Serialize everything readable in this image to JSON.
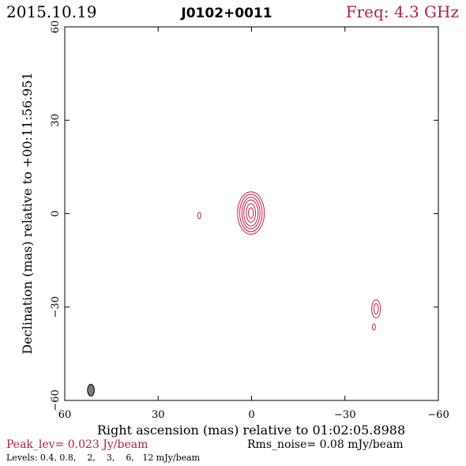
{
  "header": {
    "date": "2015.10.19",
    "source": "J0102+0011",
    "freq": "Freq: 4.3 GHz"
  },
  "footer": {
    "peak_lev": "Peak_lev=  0.023 Jy/beam",
    "rms_noise": "Rms_noise= 0.08 mJy/beam",
    "levels": "Levels: 0.4, 0.8,    2,    3,    6,   12 mJy/beam"
  },
  "colors": {
    "contour": "#c0204a",
    "accent_text": "#b0203f",
    "axes": "#000000",
    "beam": "#7a7a7a"
  },
  "chart_data": {
    "type": "contour",
    "title": "J0102+0011",
    "xlabel": "Right ascension (mas) relative to 01:02:05.8988",
    "ylabel": "Declination (mas) relative to +00:11:56.951",
    "xlim": [
      60,
      -60
    ],
    "ylim": [
      -60,
      60
    ],
    "xticks": [
      60,
      30,
      0,
      -30,
      -60
    ],
    "yticks": [
      60,
      30,
      0,
      -30,
      -60
    ],
    "xtick_labels": [
      "60",
      "30",
      "0",
      "−30",
      "−60"
    ],
    "ytick_labels": [
      "60",
      "30",
      "0",
      "−30",
      "−60"
    ],
    "grid": false,
    "levels_mJy": [
      0.4,
      0.8,
      2,
      3,
      6,
      12
    ],
    "components": [
      {
        "name": "core",
        "x": 0.2,
        "y": 0.2,
        "rings": [
          {
            "rx": 4.3,
            "ry": 6.8
          },
          {
            "rx": 3.6,
            "ry": 6.0
          },
          {
            "rx": 2.9,
            "ry": 5.1
          },
          {
            "rx": 2.3,
            "ry": 4.2
          },
          {
            "rx": 1.5,
            "ry": 3.0
          },
          {
            "rx": 0.8,
            "ry": 1.7
          }
        ]
      },
      {
        "name": "west-feature",
        "x": -40.0,
        "y": -30.6,
        "rings": [
          {
            "rx": 1.4,
            "ry": 2.9
          },
          {
            "rx": 0.7,
            "ry": 1.7
          }
        ]
      },
      {
        "name": "west-small-feature",
        "x": -39.3,
        "y": -36.4,
        "rings": [
          {
            "rx": 0.5,
            "ry": 1.0
          }
        ]
      },
      {
        "name": "east-small-feature",
        "x": 16.8,
        "y": -0.6,
        "rings": [
          {
            "rx": 0.5,
            "ry": 1.0
          }
        ]
      }
    ],
    "beam": {
      "x": 51.6,
      "y": -56.7,
      "rx": 1.1,
      "ry": 1.9
    }
  }
}
